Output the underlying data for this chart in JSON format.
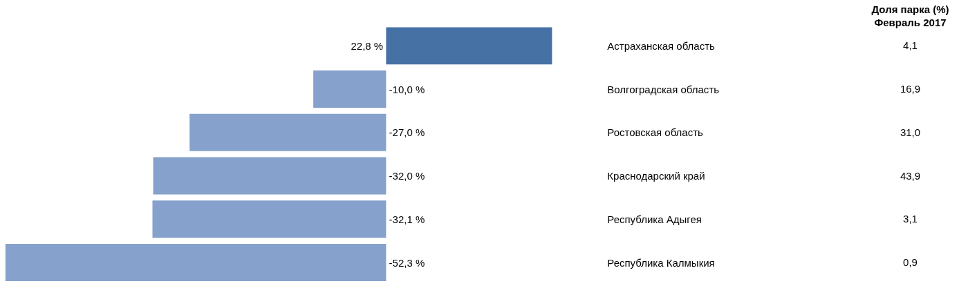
{
  "chart_data": {
    "type": "bar",
    "orientation": "horizontal",
    "categories": [
      "Астраханская область",
      "Волгоградская область",
      "Ростовская область",
      "Краснодарский край",
      "Республика Адыгея",
      "Республика Калмыкия"
    ],
    "values": [
      22.8,
      -10.0,
      -27.0,
      -32.0,
      -32.1,
      -52.3
    ],
    "colors": [
      "#4571a5",
      "#86a1cb",
      "#86a1cb",
      "#86a1cb",
      "#86a1cb",
      "#86a1cb"
    ],
    "value_labels": [
      "22,8 %",
      "-10,0 %",
      "-27,0 %",
      "-32,0 %",
      "-32,1 %",
      "-52,3 %"
    ],
    "xlim": [
      -53,
      80
    ],
    "annotations": [
      "Доля парка (%)",
      "Февраль 2017",
      "4,1",
      "16,9",
      "31,0",
      "43,9",
      "3,1",
      "0,9"
    ]
  }
}
